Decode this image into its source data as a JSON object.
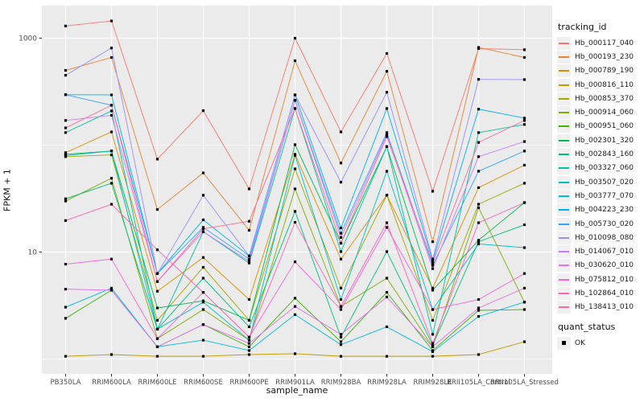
{
  "chart_data": {
    "type": "line",
    "title": "",
    "xlabel": "sample_name",
    "ylabel": "FPKM + 1",
    "y_scale": "log10",
    "ylim": [
      0.73,
      2000
    ],
    "grid": true,
    "y_major_ticks": [
      {
        "value": 10,
        "label": "10"
      },
      {
        "value": 1000,
        "label": "1000"
      }
    ],
    "y_minor_ticks": [
      1,
      100
    ],
    "categories": [
      "PB350LA",
      "RRIM600LA",
      "RRIM600LE",
      "RRIM600SE",
      "RRIM600PE",
      "RRIM901LA",
      "RRIM928BA",
      "RRIM928LA",
      "RRIM928LE",
      "RRII105LA_Control",
      "RRII105LA_Stressed"
    ],
    "legend": {
      "title": "tracking_id",
      "position": "right"
    },
    "quant_status": {
      "title": "quant_status",
      "items": [
        {
          "label": "OK",
          "marker": "black-square-icon"
        }
      ]
    },
    "point_marker": "black-square-icon",
    "panel_color": "#EBEBEB",
    "grid_color": "#FFFFFF",
    "tick_text_color": "#4D4D4D",
    "series": [
      {
        "name": "Hb_000117_040",
        "color": "#F8766D",
        "values": [
          1300,
          1450,
          74,
          210,
          39,
          1000,
          133,
          720,
          37,
          800,
          780
        ]
      },
      {
        "name": "Hb_000193_230",
        "color": "#EA8331",
        "values": [
          500,
          660,
          25,
          55,
          16,
          615,
          68,
          490,
          12.5,
          820,
          660
        ]
      },
      {
        "name": "Hb_000789_190",
        "color": "#D89000",
        "values": [
          85,
          133,
          4.3,
          8.9,
          3.6,
          82,
          8.6,
          34,
          4.6,
          40,
          65
        ]
      },
      {
        "name": "Hb_000816_110",
        "color": "#C09B00",
        "values": [
          1.06,
          1.1,
          1.06,
          1.06,
          1.1,
          1.12,
          1.06,
          1.06,
          1.06,
          1.1,
          1.45
        ]
      },
      {
        "name": "Hb_000853_370",
        "color": "#A3A500",
        "values": [
          78,
          81,
          2.3,
          7.2,
          2.3,
          60,
          4.6,
          34,
          2.3,
          28,
          44
        ]
      },
      {
        "name": "Hb_000914_060",
        "color": "#7CAE00",
        "values": [
          30,
          49,
          1.55,
          2.9,
          1.5,
          39,
          3.1,
          5.7,
          1.3,
          26,
          3.4
        ]
      },
      {
        "name": "Hb_000951_060",
        "color": "#39B600",
        "values": [
          2.4,
          4.4,
          1.3,
          2.1,
          1.3,
          3.7,
          1.45,
          4.2,
          1.2,
          2.85,
          2.9
        ]
      },
      {
        "name": "Hb_002301_320",
        "color": "#00BB4E",
        "values": [
          82,
          88,
          3.0,
          3.5,
          2.3,
          101,
          12.1,
          97,
          4.4,
          12.9,
          29
        ]
      },
      {
        "name": "Hb_002843_160",
        "color": "#00BF7D",
        "values": [
          31.5,
          44,
          1.9,
          5.7,
          2.0,
          24,
          1.6,
          10.1,
          1.35,
          12.5,
          18
        ]
      },
      {
        "name": "Hb_003327_060",
        "color": "#00C1A3",
        "values": [
          131,
          209,
          1.9,
          15.5,
          7.9,
          220,
          10.1,
          97,
          1.7,
          131,
          156
        ]
      },
      {
        "name": "Hb_003507_020",
        "color": "#00BFC4",
        "values": [
          80,
          88,
          1.9,
          3.4,
          1.5,
          80,
          3.6,
          57,
          2.9,
          11.9,
          11
        ]
      },
      {
        "name": "Hb_003777_070",
        "color": "#00BAE0",
        "values": [
          3.05,
          4.6,
          1.3,
          1.5,
          1.2,
          2.6,
          1.36,
          2.0,
          1.17,
          2.5,
          3.4
        ]
      },
      {
        "name": "Hb_004223_230",
        "color": "#00B0F6",
        "values": [
          296,
          295,
          6.3,
          20,
          9.2,
          295,
          16.8,
          220,
          8.2,
          217,
          179
        ]
      },
      {
        "name": "Hb_005730_020",
        "color": "#35A2FF",
        "values": [
          296,
          236,
          6.3,
          17,
          8.6,
          262,
          15,
          131,
          7.5,
          57,
          88
        ]
      },
      {
        "name": "Hb_010098_080",
        "color": "#9590FF",
        "values": [
          450,
          810,
          6.3,
          34,
          9.2,
          295,
          45,
          312,
          8.6,
          412,
          410
        ]
      },
      {
        "name": "Hb_014067_010",
        "color": "#C77CFF",
        "values": [
          170,
          190,
          5.3,
          15.5,
          8.2,
          262,
          13.7,
          125,
          7.0,
          78,
          108
        ]
      },
      {
        "name": "Hb_030620_010",
        "color": "#E76BF3",
        "values": [
          4.5,
          4.4,
          1.3,
          2.1,
          1.4,
          3.1,
          1.7,
          3.8,
          1.3,
          3.0,
          4.6
        ]
      },
      {
        "name": "Hb_075812_010",
        "color": "#FA62DB",
        "values": [
          7.7,
          8.6,
          1.55,
          4.2,
          1.6,
          8.1,
          2.9,
          17,
          2.9,
          3.6,
          6.3
        ]
      },
      {
        "name": "Hb_102864_010",
        "color": "#FF62BC",
        "values": [
          19.7,
          28,
          10.5,
          4.2,
          1.6,
          19,
          3.1,
          18.8,
          1.4,
          18.8,
          29
        ]
      },
      {
        "name": "Hb_138413_010",
        "color": "#FF6A98",
        "values": [
          145,
          236,
          5.3,
          16.5,
          19.4,
          220,
          12.1,
          120,
          7.9,
          106,
          170
        ]
      }
    ]
  }
}
